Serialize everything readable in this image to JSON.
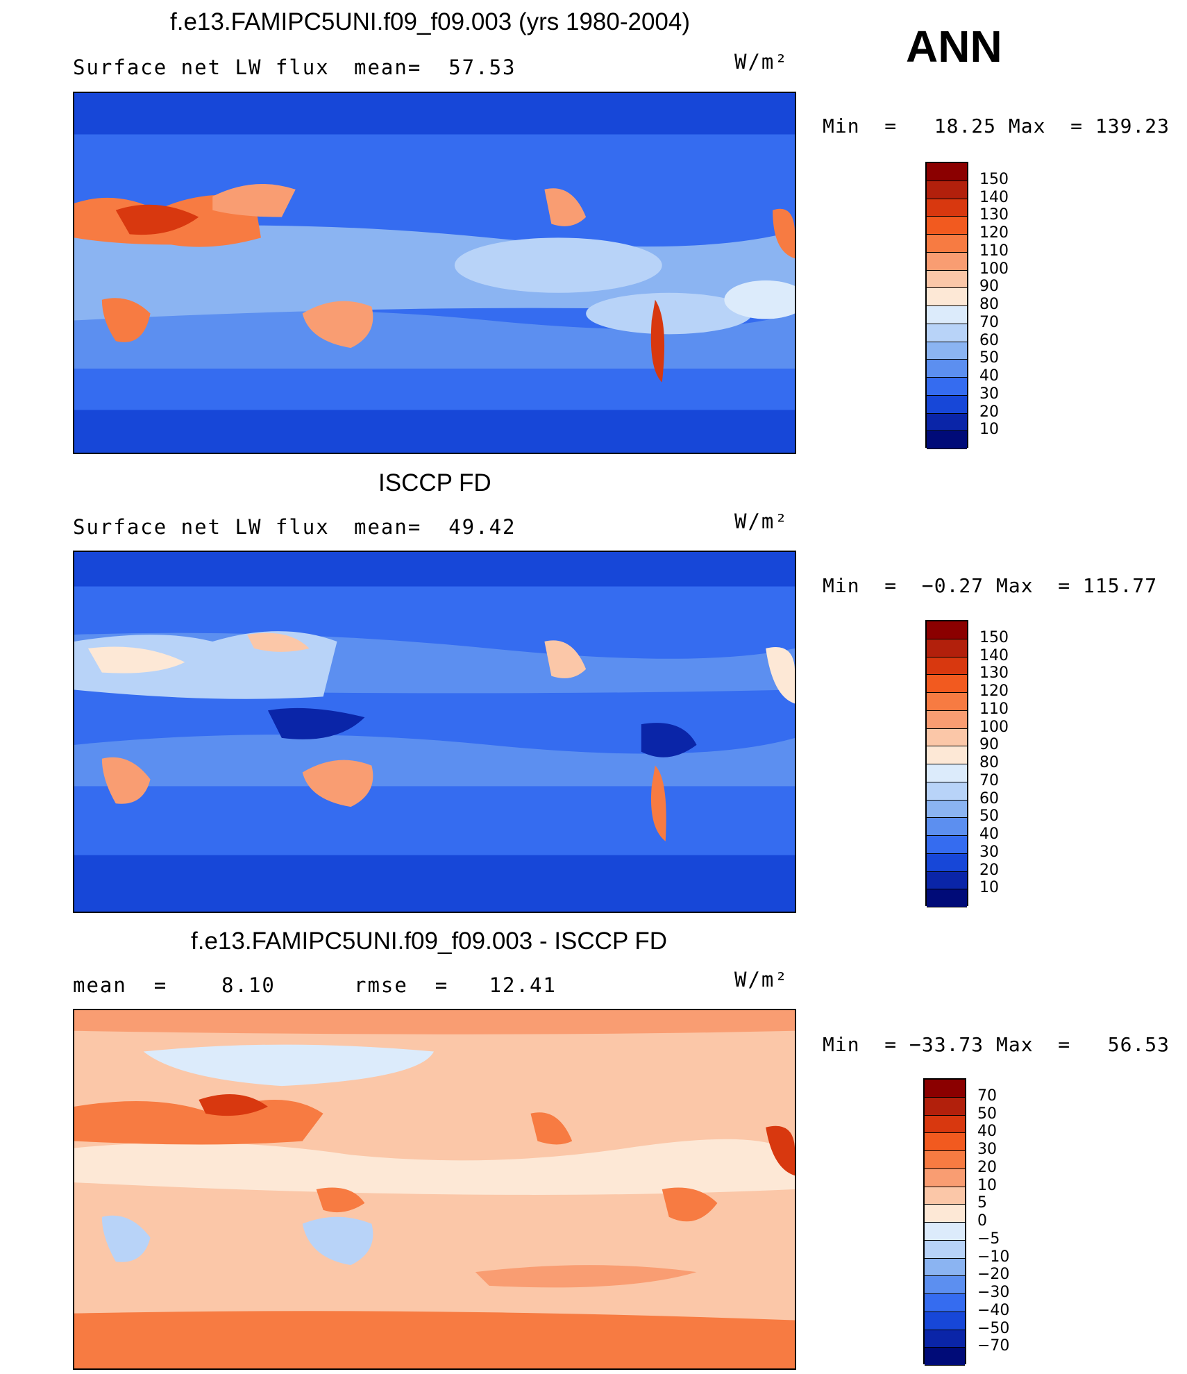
{
  "season": "ANN",
  "panels": [
    {
      "title": "f.e13.FAMIPC5UNI.f09_f09.003 (yrs 1980-2004)",
      "left_label": "Surface net LW flux",
      "mid_label": "mean=  57.53",
      "units": "W/m²",
      "minmax": "Min  =   18.25 Max  = 139.23",
      "colorbar_labels": [
        "150",
        "140",
        "130",
        "120",
        "110",
        "100",
        "90",
        "80",
        "70",
        "60",
        "50",
        "40",
        "30",
        "20",
        "10"
      ],
      "colors": [
        "#8b0000",
        "#b2200c",
        "#d8380f",
        "#f25a1f",
        "#f77b42",
        "#f99d72",
        "#fbc7a8",
        "#fde8d6",
        "#dcebfb",
        "#b8d3f8",
        "#8bb4f2",
        "#5c8ff0",
        "#356cf0",
        "#1747d8",
        "#0a25a8",
        "#000b78"
      ]
    },
    {
      "title": "ISCCP FD",
      "left_label": "Surface net LW flux",
      "mid_label": "mean=  49.42",
      "units": "W/m²",
      "minmax": "Min  =  −0.27 Max  = 115.77",
      "colorbar_labels": [
        "150",
        "140",
        "130",
        "120",
        "110",
        "100",
        "90",
        "80",
        "70",
        "60",
        "50",
        "40",
        "30",
        "20",
        "10"
      ],
      "colors": [
        "#8b0000",
        "#b2200c",
        "#d8380f",
        "#f25a1f",
        "#f77b42",
        "#f99d72",
        "#fbc7a8",
        "#fde8d6",
        "#dcebfb",
        "#b8d3f8",
        "#8bb4f2",
        "#5c8ff0",
        "#356cf0",
        "#1747d8",
        "#0a25a8",
        "#000b78"
      ]
    },
    {
      "title": "f.e13.FAMIPC5UNI.f09_f09.003 - ISCCP FD",
      "left_label": "mean  =    8.10",
      "mid_label": "rmse  =   12.41",
      "units": "W/m²",
      "minmax": "Min  = −33.73 Max  =   56.53",
      "colorbar_labels": [
        "70",
        "50",
        "40",
        "30",
        "20",
        "10",
        "5",
        "0",
        "−5",
        "−10",
        "−20",
        "−30",
        "−40",
        "−50",
        "−70"
      ],
      "colors": [
        "#8b0000",
        "#b2200c",
        "#d8380f",
        "#f25a1f",
        "#f77b42",
        "#f99d72",
        "#fbc7a8",
        "#fde8d6",
        "#dcebfb",
        "#b8d3f8",
        "#8bb4f2",
        "#5c8ff0",
        "#356cf0",
        "#1747d8",
        "#0a25a8",
        "#000b78"
      ]
    }
  ]
}
